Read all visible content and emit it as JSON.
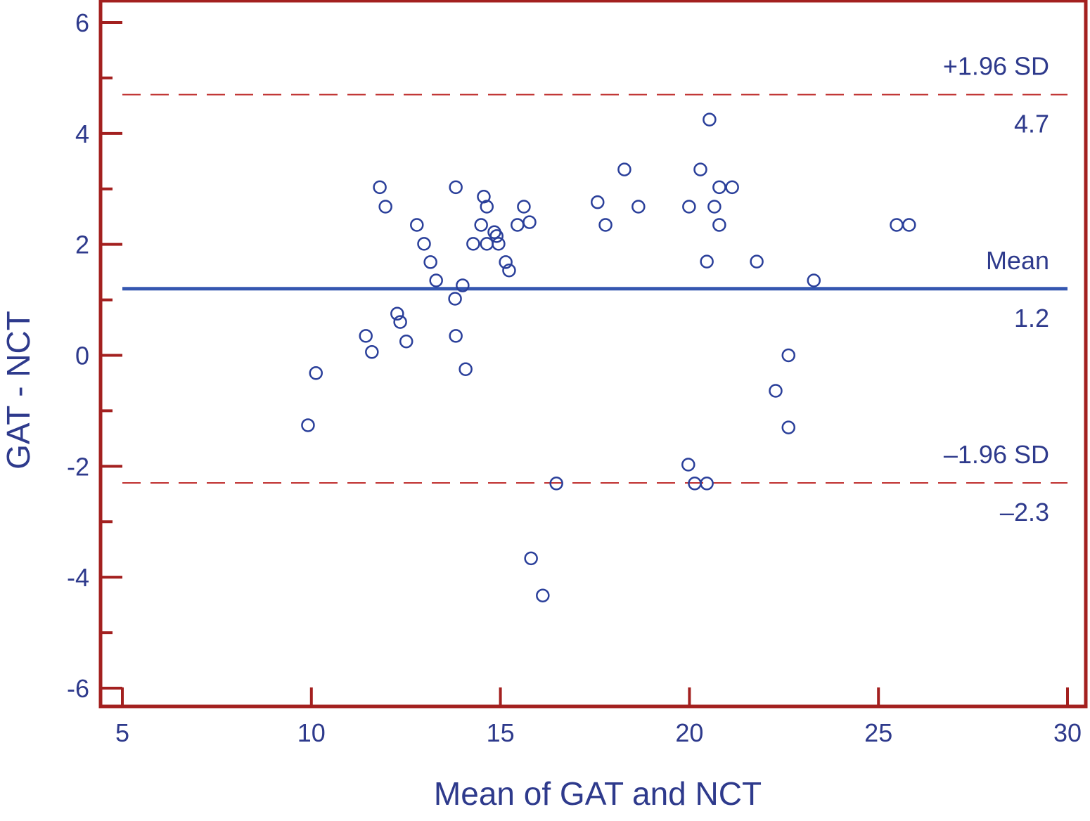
{
  "chart_data": {
    "type": "scatter",
    "title": "",
    "xlabel": "Mean of GAT and NCT",
    "ylabel": "GAT - NCT",
    "xlim": [
      5,
      30
    ],
    "ylim": [
      -6.3,
      6.4
    ],
    "xticks": [
      5,
      10,
      15,
      20,
      25,
      30
    ],
    "yticks": [
      6,
      4,
      2,
      0,
      -2,
      -4,
      -6
    ],
    "grid": false,
    "colors": {
      "frame": "#a3201f",
      "text": "#2e3a8c",
      "points": "#2a3f9a",
      "mean_line": "#3557b0",
      "limit_lines": "#c0302f"
    },
    "reference_lines": [
      {
        "label": "+1.96 SD",
        "value_label": "4.7",
        "y": 4.7,
        "style": "dashed"
      },
      {
        "label": "Mean",
        "value_label": "1.2",
        "y": 1.2,
        "style": "solid"
      },
      {
        "label": "–1.96 SD",
        "value_label": "–2.3",
        "y": -2.3,
        "style": "dashed"
      }
    ],
    "points": [
      [
        9.91,
        -1.26
      ],
      [
        10.12,
        -0.32
      ],
      [
        11.44,
        0.35
      ],
      [
        11.6,
        0.06
      ],
      [
        11.81,
        3.03
      ],
      [
        11.96,
        2.68
      ],
      [
        12.27,
        0.75
      ],
      [
        12.35,
        0.6
      ],
      [
        12.51,
        0.25
      ],
      [
        12.79,
        2.35
      ],
      [
        12.98,
        2.01
      ],
      [
        13.15,
        1.68
      ],
      [
        13.3,
        1.35
      ],
      [
        13.8,
        1.02
      ],
      [
        13.82,
        3.03
      ],
      [
        13.82,
        0.35
      ],
      [
        14.0,
        1.26
      ],
      [
        14.08,
        -0.25
      ],
      [
        14.28,
        2.01
      ],
      [
        14.49,
        2.35
      ],
      [
        14.56,
        2.86
      ],
      [
        14.64,
        2.68
      ],
      [
        14.64,
        2.01
      ],
      [
        14.84,
        2.22
      ],
      [
        14.9,
        2.15
      ],
      [
        14.95,
        2.01
      ],
      [
        15.14,
        1.68
      ],
      [
        15.23,
        1.53
      ],
      [
        15.45,
        2.35
      ],
      [
        15.62,
        2.68
      ],
      [
        15.77,
        2.4
      ],
      [
        15.81,
        -3.66
      ],
      [
        16.12,
        -4.33
      ],
      [
        16.48,
        -2.31
      ],
      [
        17.57,
        2.76
      ],
      [
        17.78,
        2.35
      ],
      [
        18.28,
        3.35
      ],
      [
        18.65,
        2.68
      ],
      [
        19.99,
        2.68
      ],
      [
        19.97,
        -1.97
      ],
      [
        20.14,
        -2.31
      ],
      [
        20.29,
        3.35
      ],
      [
        20.46,
        1.69
      ],
      [
        20.46,
        -2.31
      ],
      [
        20.53,
        4.25
      ],
      [
        20.66,
        2.68
      ],
      [
        20.79,
        2.35
      ],
      [
        20.79,
        3.03
      ],
      [
        21.13,
        3.03
      ],
      [
        21.78,
        1.69
      ],
      [
        22.28,
        -0.64
      ],
      [
        22.62,
        0.0
      ],
      [
        22.62,
        -1.3
      ],
      [
        23.29,
        1.35
      ],
      [
        25.48,
        2.35
      ],
      [
        25.81,
        2.35
      ]
    ]
  }
}
